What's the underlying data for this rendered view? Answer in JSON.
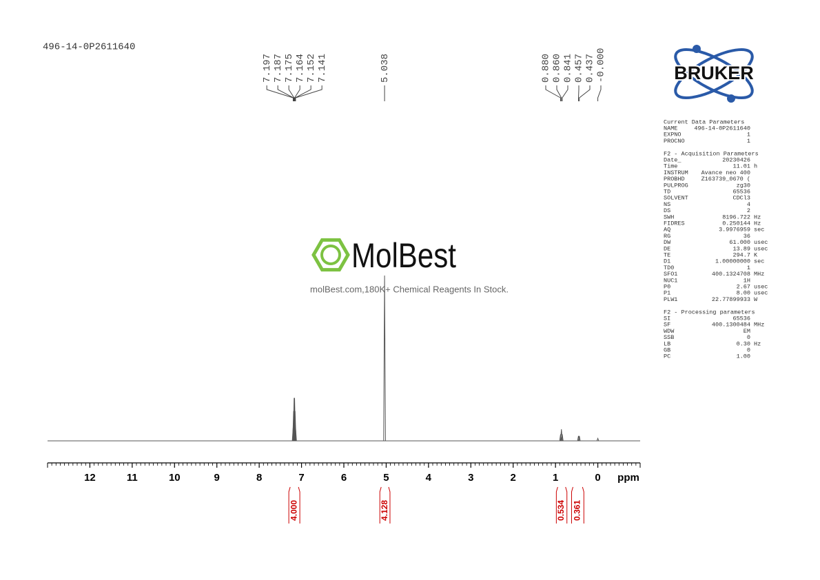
{
  "sample_name": "496-14-0P2611640",
  "watermark": {
    "brand": "MolBest",
    "tagline": "molBest.com,180K+ Chemical Reagents In Stock."
  },
  "logo": "BRUKER",
  "parameters": [
    {
      "title": "Current Data Parameters",
      "rows": [
        [
          "NAME",
          "496-14-0P2611640"
        ],
        [
          "EXPNO",
          "1"
        ],
        [
          "PROCNO",
          "1"
        ]
      ]
    },
    {
      "title": "F2 - Acquisition Parameters",
      "rows": [
        [
          "Date_",
          "20230426"
        ],
        [
          "Time",
          "11.01",
          "h"
        ],
        [
          "INSTRUM",
          "Avance neo 400"
        ],
        [
          "PROBHD",
          "Z163739_0670 ("
        ],
        [
          "PULPROG",
          "zg30"
        ],
        [
          "TD",
          "65536"
        ],
        [
          "SOLVENT",
          "CDCl3"
        ],
        [
          "NS",
          "4"
        ],
        [
          "DS",
          "2"
        ],
        [
          "SWH",
          "8196.722",
          "Hz"
        ],
        [
          "FIDRES",
          "0.250144",
          "Hz"
        ],
        [
          "AQ",
          "3.9976959",
          "sec"
        ],
        [
          "RG",
          "36"
        ],
        [
          "DW",
          "61.000",
          "usec"
        ],
        [
          "DE",
          "13.89",
          "usec"
        ],
        [
          "TE",
          "294.7",
          "K"
        ],
        [
          "D1",
          "1.00000000",
          "sec"
        ],
        [
          "TD0",
          "1"
        ],
        [
          "SFO1",
          "400.1324708",
          "MHz"
        ],
        [
          "NUC1",
          "1H"
        ],
        [
          "P0",
          "2.67",
          "usec"
        ],
        [
          "P1",
          "8.00",
          "usec"
        ],
        [
          "PLW1",
          "22.77899933",
          "W"
        ]
      ]
    },
    {
      "title": "F2 - Processing parameters",
      "rows": [
        [
          "SI",
          "65536"
        ],
        [
          "SF",
          "400.1300484",
          "MHz"
        ],
        [
          "WDW",
          "EM"
        ],
        [
          "SSB",
          "0"
        ],
        [
          "LB",
          "0.30",
          "Hz"
        ],
        [
          "GB",
          "0"
        ],
        [
          "PC",
          "1.00"
        ]
      ]
    }
  ],
  "chart_data": {
    "type": "nmr",
    "x_label": "ppm",
    "xlim": [
      13,
      -1
    ],
    "xticks": [
      12,
      11,
      10,
      9,
      8,
      7,
      6,
      5,
      4,
      3,
      2,
      1,
      0
    ],
    "peaks": {
      "x": [
        7.197,
        7.187,
        7.175,
        7.164,
        7.152,
        7.141,
        5.038,
        0.88,
        0.86,
        0.841,
        0.457,
        0.437,
        0
      ],
      "x_labels": [
        "7.197",
        "7.187",
        "7.175",
        "7.164",
        "7.152",
        "7.141",
        "5.038",
        "0.880",
        "0.860",
        "0.841",
        "0.457",
        "0.437",
        "-0.000"
      ],
      "values": [
        8,
        18,
        26,
        26,
        18,
        8,
        100,
        4,
        7,
        4,
        3,
        3,
        1.5
      ]
    },
    "integrals": {
      "ranges": [
        [
          7.3,
          7.04
        ],
        [
          5.15,
          4.91
        ],
        [
          0.98,
          0.73
        ],
        [
          0.62,
          0.33
        ]
      ],
      "values": [
        4,
        4.128,
        0.534,
        0.361
      ],
      "value_labels": [
        "4.000",
        "4.128",
        "0.534",
        "0.361"
      ]
    },
    "color": "#555555",
    "integral_color": "#cc0000"
  }
}
